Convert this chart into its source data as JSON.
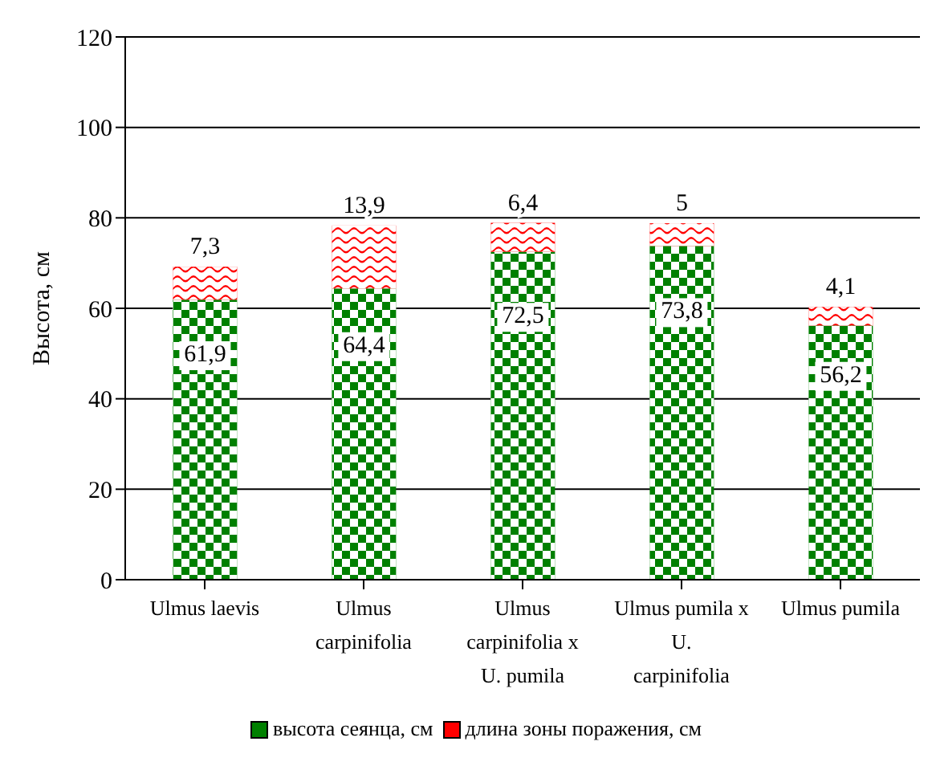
{
  "chart_data": {
    "type": "bar",
    "stacked": true,
    "ylabel": "Высота, см",
    "categories": [
      "Ulmus laevis",
      "Ulmus carpinifolia",
      "Ulmus carpinifolia x U. pumila",
      "Ulmus pumila x U. carpinifolia",
      "Ulmus pumila"
    ],
    "series": [
      {
        "name": "высота сеянца, см",
        "color": "#008000",
        "values": [
          61.9,
          64.4,
          72.5,
          73.8,
          56.2
        ],
        "value_labels": [
          "61,9",
          "64,4",
          "72,5",
          "73,8",
          "56,2"
        ]
      },
      {
        "name": "длина зоны поражения, см",
        "color": "#ff0000",
        "values": [
          7.3,
          13.9,
          6.4,
          5,
          4.1
        ],
        "value_labels": [
          "7,3",
          "13,9",
          "6,4",
          "5",
          "4,1"
        ]
      }
    ],
    "ylim": [
      0,
      120
    ],
    "yticks": [
      0,
      20,
      40,
      60,
      80,
      100,
      120
    ],
    "grid": "y",
    "legend": "bottom"
  }
}
